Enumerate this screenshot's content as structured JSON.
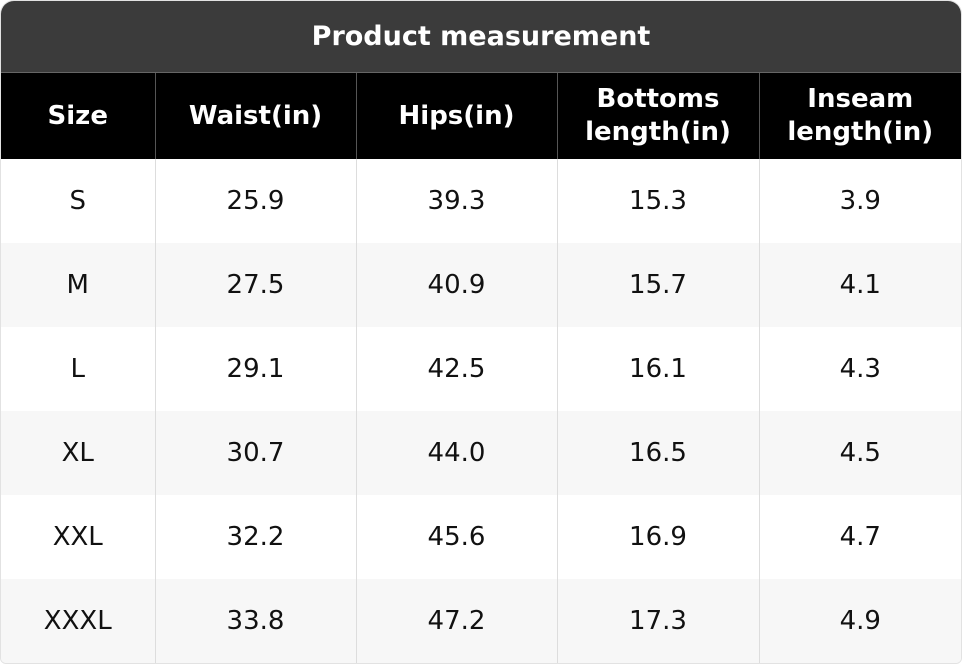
{
  "header": {
    "title": "Product measurement"
  },
  "table": {
    "columns": [
      "Size",
      "Waist(in)",
      "Hips(in)",
      "Bottoms length(in)",
      "Inseam length(in)"
    ],
    "rows": [
      [
        "S",
        "25.9",
        "39.3",
        "15.3",
        "3.9"
      ],
      [
        "M",
        "27.5",
        "40.9",
        "15.7",
        "4.1"
      ],
      [
        "L",
        "29.1",
        "42.5",
        "16.1",
        "4.3"
      ],
      [
        "XL",
        "30.7",
        "44.0",
        "16.5",
        "4.5"
      ],
      [
        "XXL",
        "32.2",
        "45.6",
        "16.9",
        "4.7"
      ],
      [
        "XXXL",
        "33.8",
        "47.2",
        "17.3",
        "4.9"
      ]
    ]
  }
}
